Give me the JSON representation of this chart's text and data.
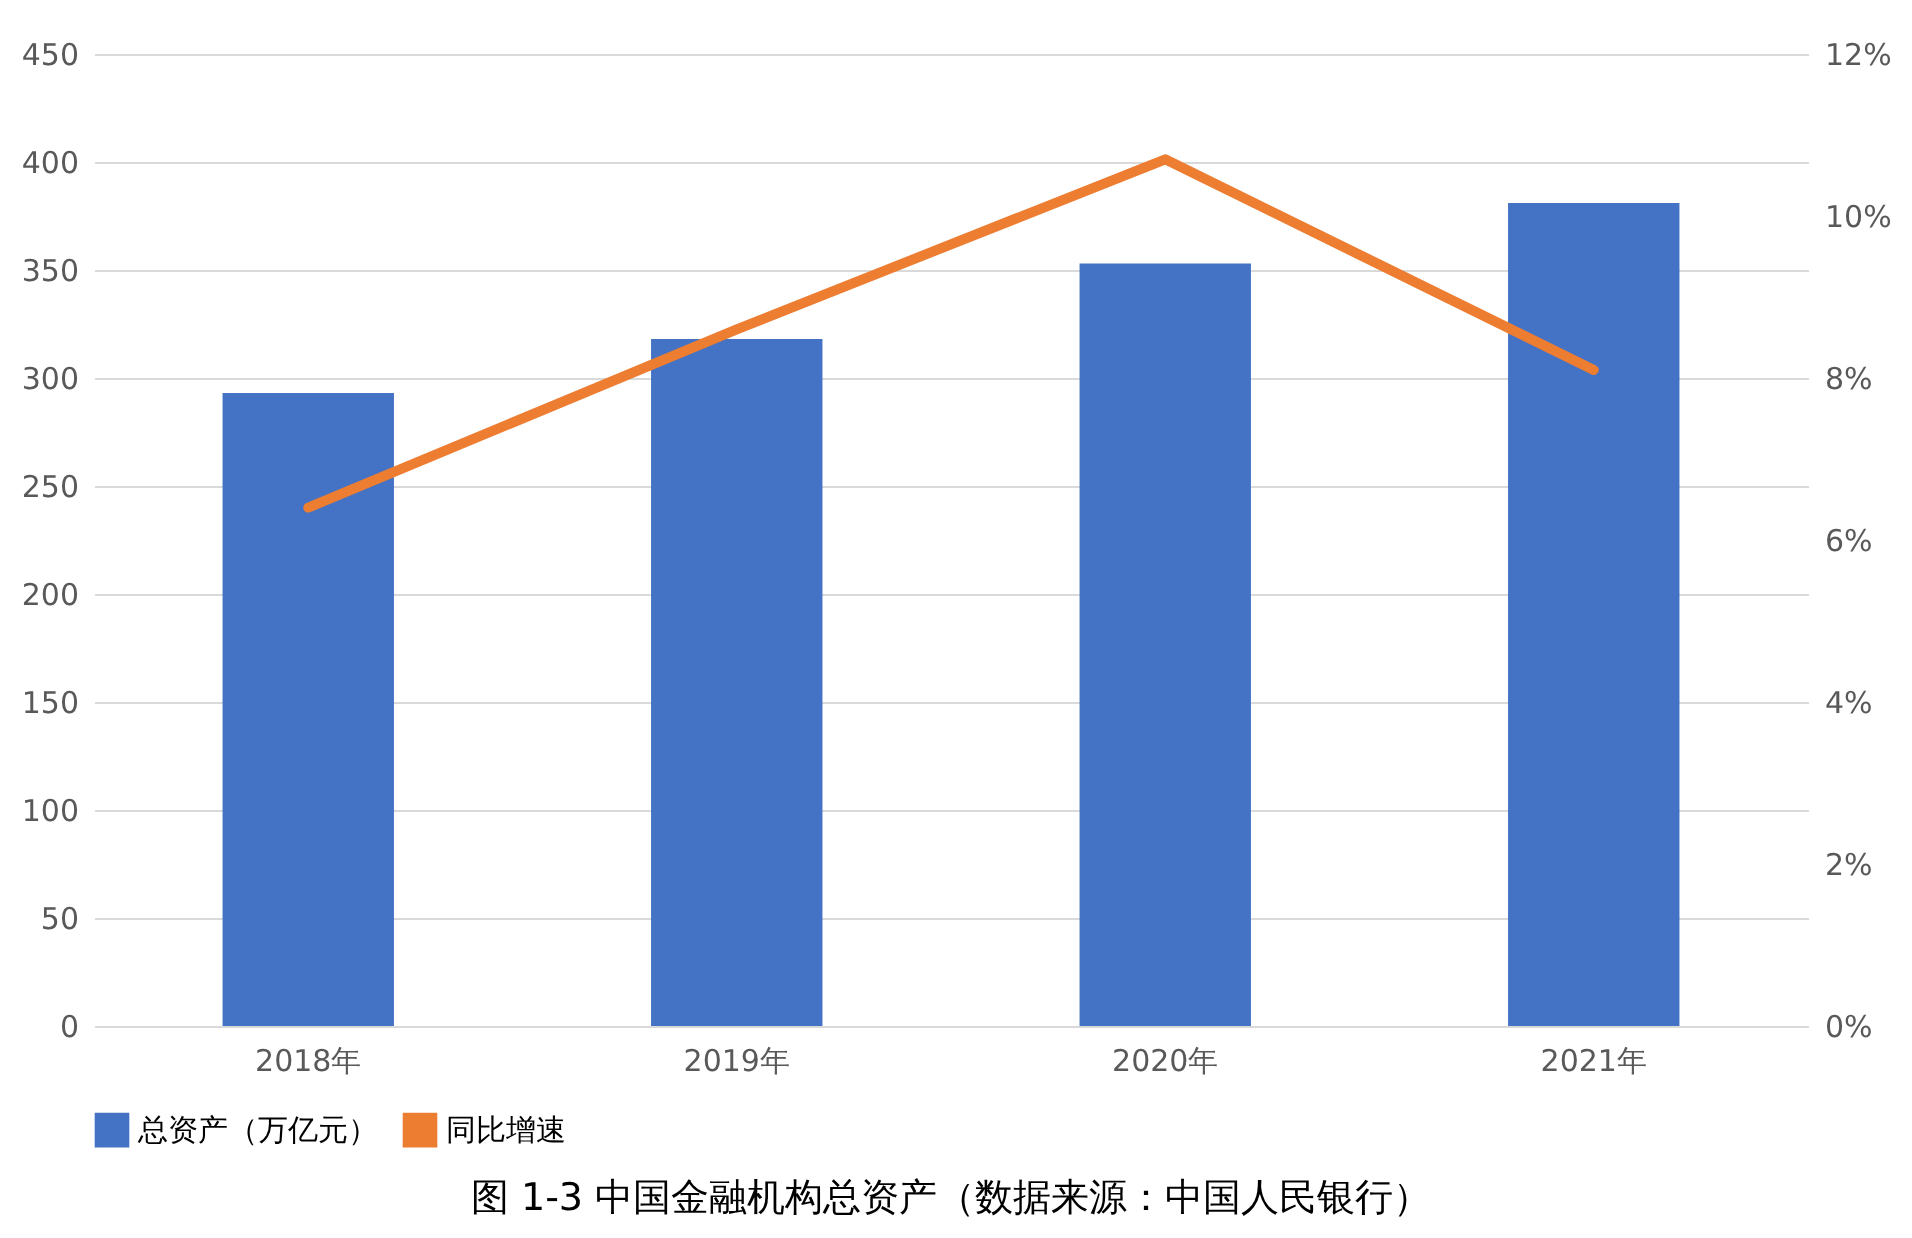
{
  "chart_data": {
    "type": "bar",
    "categories": [
      "2018年",
      "2019年",
      "2020年",
      "2021年"
    ],
    "series": [
      {
        "name": "总资产（万亿元）",
        "color": "#4472c4",
        "values": [
          293,
          318,
          353,
          381
        ]
      },
      {
        "name": "同比增速",
        "type": "line",
        "axis": "y2",
        "color": "#ed7d31",
        "values": [
          6.4,
          8.6,
          10.7,
          8.1
        ]
      }
    ],
    "ylim": [
      0,
      450
    ],
    "yticks": [
      0,
      50,
      100,
      150,
      200,
      250,
      300,
      350,
      400,
      450
    ],
    "y2lim": [
      0,
      12
    ],
    "y2ticks": [
      {
        "value": 0,
        "label": "0%"
      },
      {
        "value": 2,
        "label": "2%"
      },
      {
        "value": 4,
        "label": "4%"
      },
      {
        "value": 6,
        "label": "6%"
      },
      {
        "value": 8,
        "label": "8%"
      },
      {
        "value": 10,
        "label": "10%"
      },
      {
        "value": 12,
        "label": "12%"
      }
    ],
    "grid": "y",
    "legend": "bottom",
    "marker": "none",
    "line_style": "solid",
    "annotations": [
      "图 1-3 中国金融机构总资产（数据来源：中国人民银行）"
    ]
  }
}
